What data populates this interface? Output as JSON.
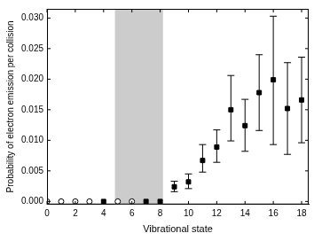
{
  "chart_data": {
    "type": "scatter",
    "x_label": "Vibrational state",
    "y_label": "Probability of electron emission per collision",
    "xlim": [
      0,
      18.5
    ],
    "xticks": [
      0,
      2,
      4,
      6,
      8,
      10,
      12,
      14,
      16,
      18
    ],
    "ylim": [
      -0.0005,
      0.0315
    ],
    "yticks": [
      {
        "value": 0,
        "label": "0.000"
      },
      {
        "value": 0.005,
        "label": "0.005"
      },
      {
        "value": 0.01,
        "label": "0.010"
      },
      {
        "value": 0.015,
        "label": "0.015"
      },
      {
        "value": 0.02,
        "label": "0.020"
      },
      {
        "value": 0.025,
        "label": "0.025"
      },
      {
        "value": 0.03,
        "label": "0.030"
      }
    ],
    "grid": false,
    "shaded_x": [
      4.8,
      8.2
    ],
    "series": [
      {
        "marker": "open_circle",
        "color": "#000000",
        "x": [
          0,
          1,
          2,
          3,
          5,
          6
        ],
        "values": [
          0,
          0,
          0,
          0,
          0,
          0
        ]
      },
      {
        "marker": "square",
        "color": "#000000",
        "x": [
          4,
          7,
          8,
          9,
          10,
          11,
          12,
          13,
          14,
          15,
          16,
          17,
          18
        ],
        "values": [
          0,
          0,
          0,
          0.0024,
          0.0032,
          0.0067,
          0.0089,
          0.015,
          0.0124,
          0.0178,
          0.0199,
          0.0152,
          0.0166
        ],
        "error_low": [
          null,
          null,
          null,
          0.0016,
          0.0021,
          0.0048,
          0.0064,
          0.0099,
          0.0082,
          0.0116,
          0.0093,
          0.0077,
          0.0096
        ],
        "error_high": [
          null,
          null,
          null,
          0.0033,
          0.0045,
          0.0093,
          0.0117,
          0.0206,
          0.0167,
          0.024,
          0.0303,
          0.0227,
          0.0236
        ]
      }
    ]
  }
}
